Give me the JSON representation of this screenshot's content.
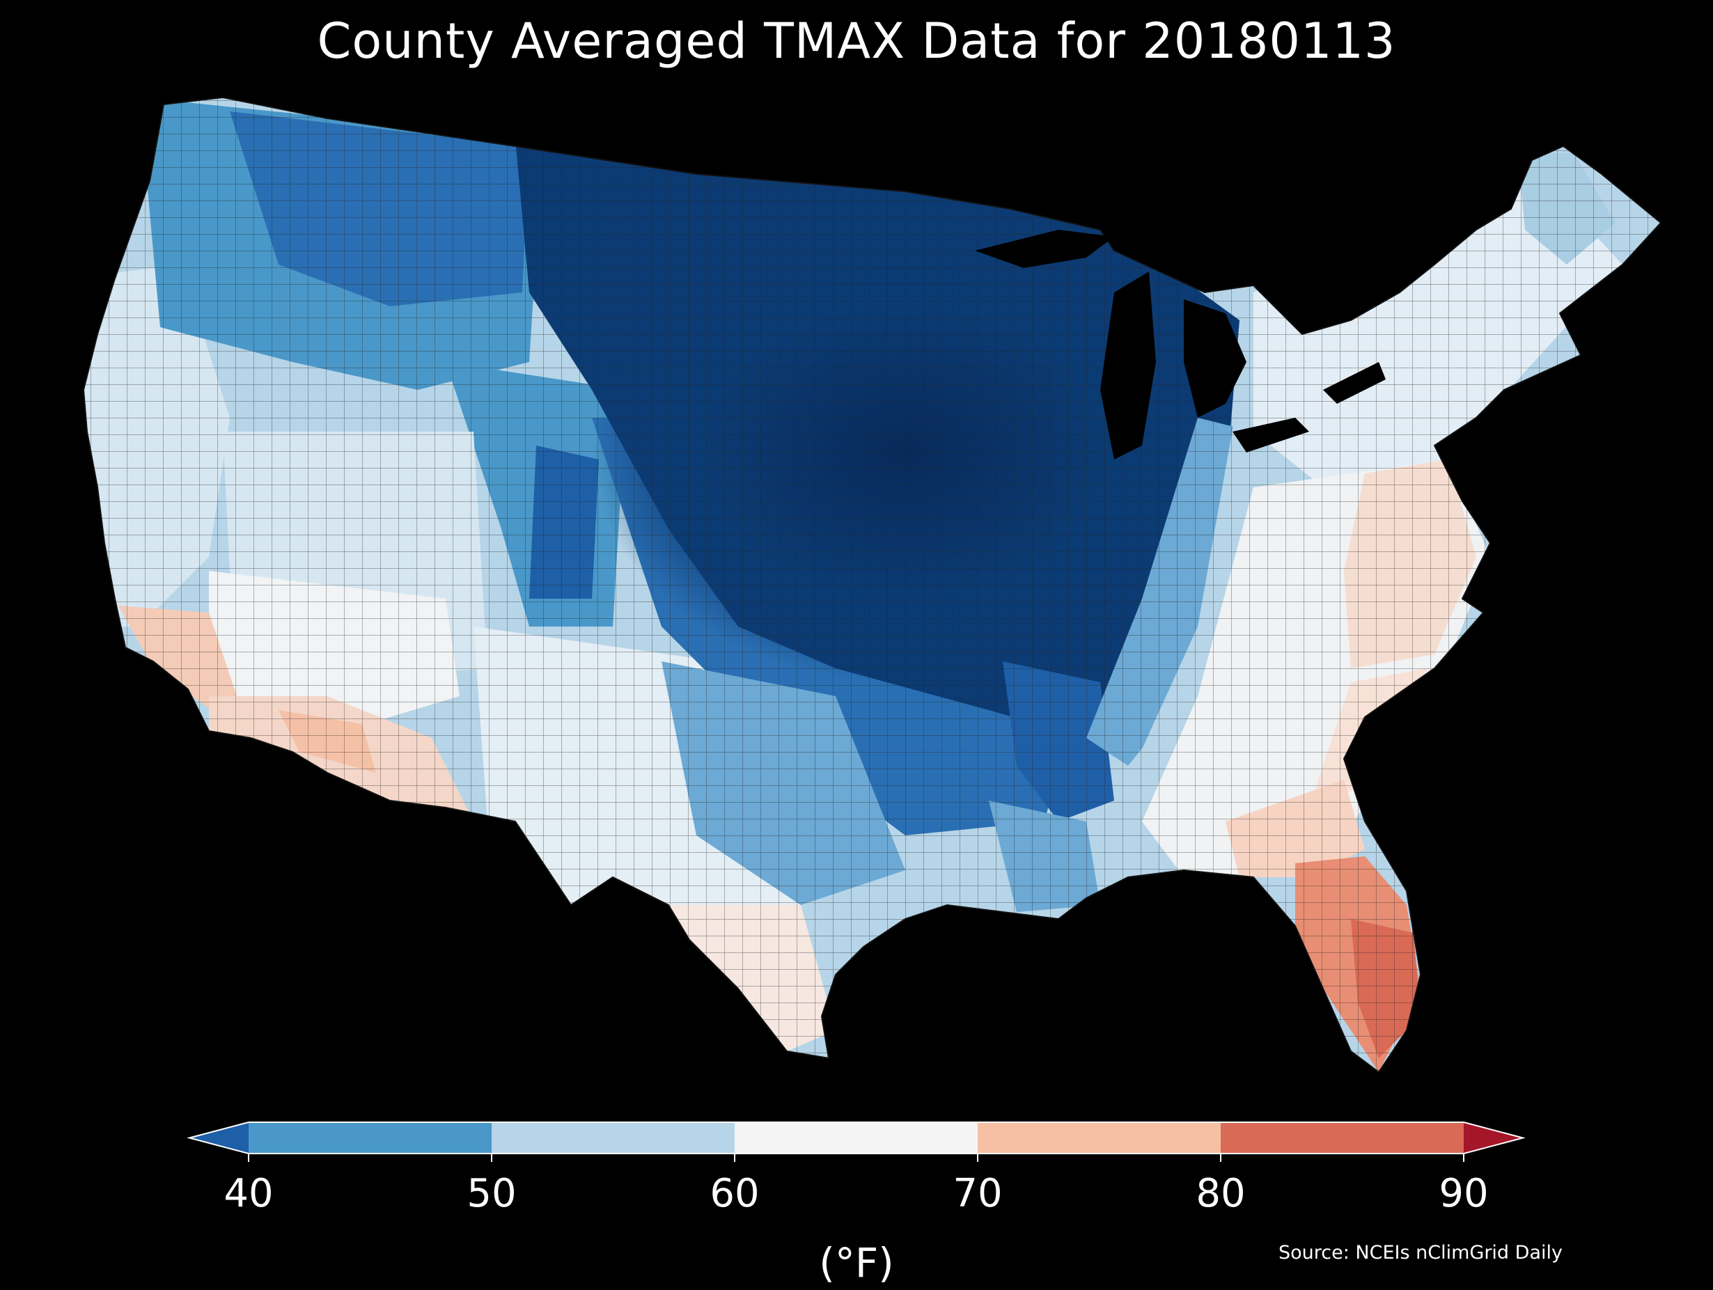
{
  "title": "County Averaged TMAX Data for 20180113",
  "colorbar": {
    "unit": "(°F)",
    "ticks": [
      "40",
      "50",
      "60",
      "70",
      "80",
      "90"
    ],
    "bins": [
      {
        "from": null,
        "to": 40,
        "color": "#1f5fa8"
      },
      {
        "from": 40,
        "to": 50,
        "color": "#4a98c9"
      },
      {
        "from": 50,
        "to": 60,
        "color": "#b7d5e8"
      },
      {
        "from": 60,
        "to": 70,
        "color": "#f4f4f4"
      },
      {
        "from": 70,
        "to": 80,
        "color": "#f7c0a5"
      },
      {
        "from": 80,
        "to": 90,
        "color": "#d96a56"
      },
      {
        "from": 90,
        "to": null,
        "color": "#a51628"
      }
    ]
  },
  "source": "Source: NCEIs nClimGrid Daily",
  "map": {
    "region": "Contiguous United States",
    "variable": "TMAX",
    "date": "20180113",
    "level": "county",
    "colors": {
      "background": "#000000",
      "county_border": "#222222",
      "lakes": "#000000"
    }
  }
}
